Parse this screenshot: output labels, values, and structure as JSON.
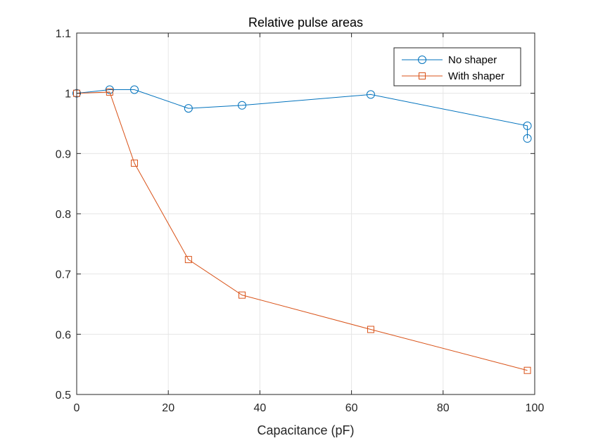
{
  "chart_data": {
    "type": "line",
    "title": "Relative pulse areas",
    "xlabel": "Capacitance (pF)",
    "ylabel": "",
    "xlim": [
      0,
      100
    ],
    "ylim": [
      0.5,
      1.1
    ],
    "xticks": [
      "0",
      "20",
      "40",
      "60",
      "80",
      "100"
    ],
    "yticks": [
      "0.5",
      "0.6",
      "0.7",
      "0.8",
      "0.9",
      "1",
      "1.1"
    ],
    "grid": true,
    "legend_position": "top-right",
    "series": [
      {
        "name": "No shaper",
        "color": "#0072BD",
        "marker": "circle",
        "x": [
          0,
          7.2,
          12.6,
          24.4,
          36.1,
          64.2,
          98.4,
          98.4
        ],
        "y": [
          1.0,
          1.006,
          1.006,
          0.975,
          0.98,
          0.998,
          0.946,
          0.925
        ]
      },
      {
        "name": "With shaper",
        "color": "#D95319",
        "marker": "square",
        "x": [
          0,
          7.2,
          12.6,
          24.4,
          36.1,
          64.2,
          98.4
        ],
        "y": [
          1.0,
          1.002,
          0.884,
          0.724,
          0.665,
          0.608,
          0.54
        ]
      }
    ]
  }
}
